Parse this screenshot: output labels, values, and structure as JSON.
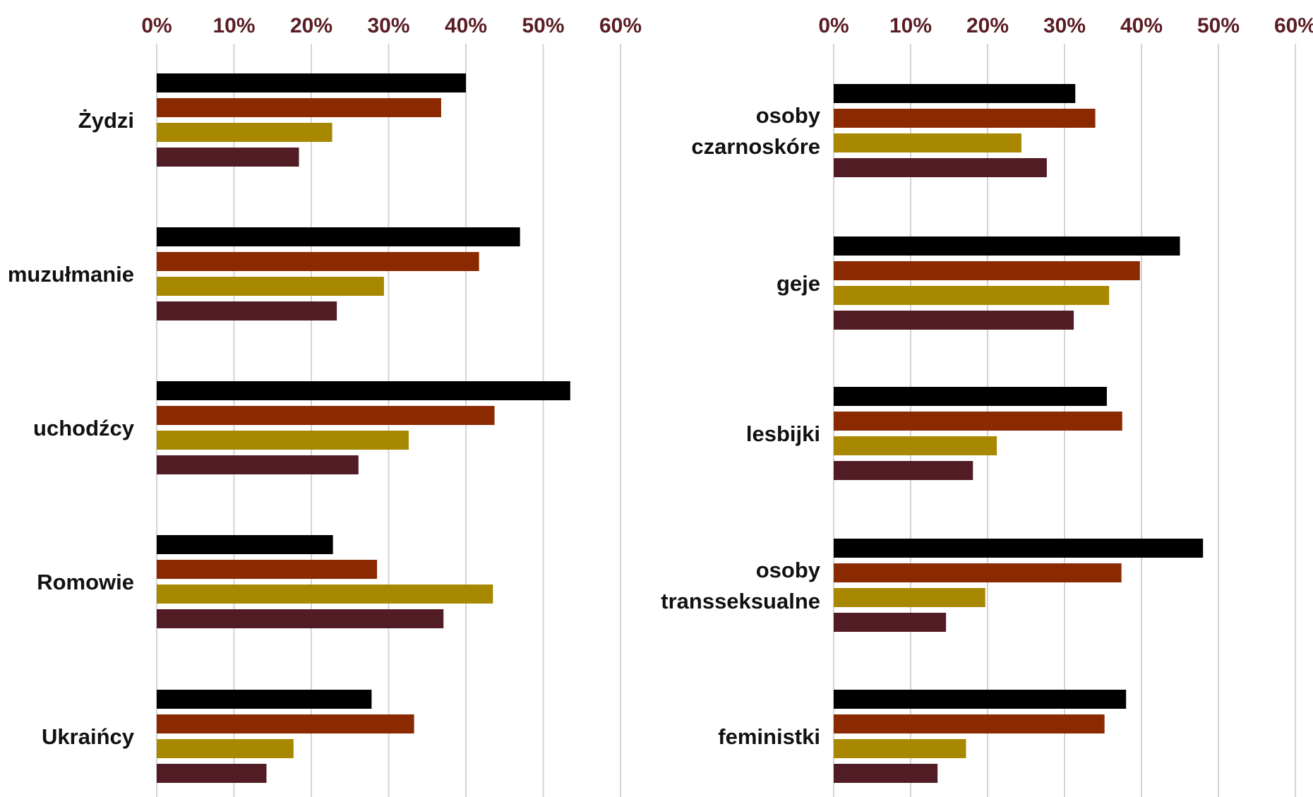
{
  "chart_data": [
    {
      "type": "bar",
      "orientation": "horizontal",
      "categories": [
        "Żydzi",
        "muzułmanie",
        "uchodźcy",
        "Romowie",
        "Ukraińcy"
      ],
      "category_lines": [
        [
          "Żydzi"
        ],
        [
          "muzułmanie"
        ],
        [
          "uchodźcy"
        ],
        [
          "Romowie"
        ],
        [
          "Ukraińcy"
        ]
      ],
      "series": [
        {
          "values": [
            40,
            47,
            53.5,
            22.8,
            27.8
          ]
        },
        {
          "values": [
            36.8,
            41.7,
            43.7,
            28.5,
            33.3
          ]
        },
        {
          "values": [
            22.7,
            29.4,
            32.6,
            43.5,
            17.7
          ]
        },
        {
          "values": [
            18.4,
            23.3,
            26.1,
            37.1,
            14.2
          ]
        }
      ],
      "xlim": [
        0,
        60
      ],
      "xticks": [
        "0%",
        "10%",
        "20%",
        "30%",
        "40%",
        "50%",
        "60%"
      ],
      "axis_position": "top",
      "grid": true,
      "legend": "none"
    },
    {
      "type": "bar",
      "orientation": "horizontal",
      "categories": [
        "osoby czarnoskóre",
        "geje",
        "lesbijki",
        "osoby transseksualne",
        "feministki"
      ],
      "category_lines": [
        [
          "osoby",
          "czarnoskóre"
        ],
        [
          "geje"
        ],
        [
          "lesbijki"
        ],
        [
          "osoby",
          "transseksualne"
        ],
        [
          "feministki"
        ]
      ],
      "series": [
        {
          "values": [
            31.4,
            45,
            35.5,
            48,
            38
          ]
        },
        {
          "values": [
            34,
            39.8,
            37.5,
            37.4,
            35.2
          ]
        },
        {
          "values": [
            24.4,
            35.8,
            21.2,
            19.7,
            17.2
          ]
        },
        {
          "values": [
            27.7,
            31.2,
            18.1,
            14.6,
            13.5
          ]
        }
      ],
      "xlim": [
        0,
        60
      ],
      "xticks": [
        "0%",
        "10%",
        "20%",
        "30%",
        "40%",
        "50%",
        "60%"
      ],
      "axis_position": "top",
      "grid": true,
      "legend": "none"
    }
  ],
  "colors": {
    "series": [
      "#000000",
      "#8b2a00",
      "#a88800",
      "#511c23"
    ],
    "tick_text": "#5a1d24",
    "label_text": "#111111",
    "grid": "#d4d4d4"
  }
}
